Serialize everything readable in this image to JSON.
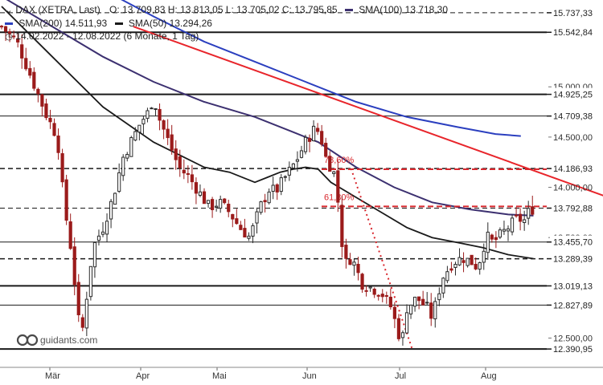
{
  "legend": {
    "instrument": "DAX (XETRA, Last)",
    "ohlc": "O: 13.709,83  H: 13.813,05  L: 13.705,02  C: 13.795,85",
    "sma100": "SMA(100)  13.718,30",
    "sma200": "SMA(200)  14.511,93",
    "sma50": "SMA(50)  13.294,26",
    "range": "14.02.2022 - 12.08.2022  (6 Monate, 1 Tag)"
  },
  "brand": "guidants.com",
  "colors": {
    "bull": "#2b2b2b",
    "bear": "#9b1b1b",
    "sma50": "#1a1a1a",
    "sma100": "#3c3070",
    "sma200": "#2b3fbf",
    "trend": "#e8252b",
    "fib": "#d8262c",
    "level": "#1a1a1a"
  },
  "chart_data": {
    "type": "candlestick",
    "title": "DAX (XETRA, Last)",
    "ylim": [
      12300,
      15800
    ],
    "x_months": [
      "Mär",
      "Apr",
      "Mai",
      "Jun",
      "Jul",
      "Aug"
    ],
    "y_ticks": [
      "15.000,00",
      "14.500,00",
      "14.000,00",
      "13.500,00",
      "12.500,00"
    ],
    "levels": [
      {
        "value": 15737.33,
        "label": "15.737,33",
        "style": "dashed",
        "width": 1
      },
      {
        "value": 15542.84,
        "label": "15.542,84",
        "style": "solid",
        "width": 2
      },
      {
        "value": 14925.25,
        "label": "14.925,25",
        "style": "solid",
        "width": 2
      },
      {
        "value": 14709.38,
        "label": "14.709,38",
        "style": "solid",
        "width": 1
      },
      {
        "value": 14186.93,
        "label": "14.186,93",
        "style": "dashed",
        "width": 1.5
      },
      {
        "value": 13792.88,
        "label": "13.792,88",
        "style": "dashed",
        "width": 1
      },
      {
        "value": 13455.7,
        "label": "13.455,70",
        "style": "solid",
        "width": 1
      },
      {
        "value": 13289.39,
        "label": "13.289,39",
        "style": "dashed",
        "width": 1.5
      },
      {
        "value": 13019.13,
        "label": "13.019,13",
        "style": "solid",
        "width": 2
      },
      {
        "value": 12827.89,
        "label": "12.827,89",
        "style": "solid",
        "width": 1
      },
      {
        "value": 12390.95,
        "label": "12.390,95",
        "style": "solid",
        "width": 2
      }
    ],
    "fib_levels": [
      {
        "label": "78,60%",
        "value": 14180
      },
      {
        "label": "61,80%",
        "value": 13810
      }
    ],
    "price_path": [
      [
        0,
        15600
      ],
      [
        6,
        15450
      ],
      [
        10,
        15200
      ],
      [
        14,
        14950
      ],
      [
        18,
        14700
      ],
      [
        22,
        14500
      ],
      [
        24,
        14000
      ],
      [
        26,
        13600
      ],
      [
        28,
        13300
      ],
      [
        30,
        12700
      ],
      [
        32,
        12600
      ],
      [
        34,
        13000
      ],
      [
        36,
        13400
      ],
      [
        40,
        13600
      ],
      [
        44,
        13900
      ],
      [
        48,
        14300
      ],
      [
        52,
        14500
      ],
      [
        55,
        14650
      ],
      [
        58,
        14750
      ],
      [
        60,
        14900
      ],
      [
        62,
        14700
      ],
      [
        66,
        14450
      ],
      [
        70,
        14200
      ],
      [
        74,
        14100
      ],
      [
        78,
        13950
      ],
      [
        82,
        13800
      ],
      [
        86,
        13850
      ],
      [
        90,
        13750
      ],
      [
        94,
        13600
      ],
      [
        98,
        13500
      ],
      [
        102,
        13800
      ],
      [
        106,
        14000
      ],
      [
        108,
        13950
      ],
      [
        112,
        14100
      ],
      [
        116,
        14250
      ],
      [
        120,
        14450
      ],
      [
        124,
        14600
      ],
      [
        126,
        14500
      ],
      [
        128,
        14300
      ],
      [
        130,
        14200
      ],
      [
        132,
        14100
      ],
      [
        134,
        13500
      ],
      [
        136,
        13250
      ],
      [
        138,
        13300
      ],
      [
        140,
        13200
      ],
      [
        142,
        13050
      ],
      [
        146,
        13000
      ],
      [
        150,
        12950
      ],
      [
        154,
        12800
      ],
      [
        156,
        12600
      ],
      [
        158,
        12450
      ],
      [
        160,
        12800
      ],
      [
        164,
        12900
      ],
      [
        168,
        12800
      ],
      [
        170,
        12700
      ],
      [
        172,
        12900
      ],
      [
        174,
        13100
      ],
      [
        178,
        13250
      ],
      [
        182,
        13300
      ],
      [
        186,
        13250
      ],
      [
        188,
        13200
      ],
      [
        190,
        13400
      ],
      [
        192,
        13500
      ],
      [
        194,
        13450
      ],
      [
        196,
        13500
      ],
      [
        200,
        13600
      ],
      [
        204,
        13700
      ],
      [
        206,
        13650
      ],
      [
        208,
        13750
      ],
      [
        210,
        13796
      ]
    ],
    "sma50": [
      [
        0,
        15800
      ],
      [
        20,
        15300
      ],
      [
        40,
        14800
      ],
      [
        60,
        14450
      ],
      [
        80,
        14200
      ],
      [
        90,
        14150
      ],
      [
        100,
        14050
      ],
      [
        105,
        14100
      ],
      [
        110,
        14150
      ],
      [
        115,
        14180
      ],
      [
        120,
        14200
      ],
      [
        125,
        14180
      ],
      [
        130,
        14050
      ],
      [
        140,
        13900
      ],
      [
        150,
        13750
      ],
      [
        160,
        13600
      ],
      [
        170,
        13500
      ],
      [
        180,
        13450
      ],
      [
        190,
        13400
      ],
      [
        200,
        13330
      ],
      [
        210,
        13290
      ]
    ],
    "sma100": [
      [
        0,
        15900
      ],
      [
        20,
        15600
      ],
      [
        40,
        15300
      ],
      [
        60,
        15050
      ],
      [
        80,
        14850
      ],
      [
        100,
        14700
      ],
      [
        115,
        14550
      ],
      [
        125,
        14450
      ],
      [
        140,
        14200
      ],
      [
        155,
        14000
      ],
      [
        170,
        13850
      ],
      [
        185,
        13780
      ],
      [
        200,
        13730
      ],
      [
        210,
        13718
      ]
    ],
    "sma200": [
      [
        45,
        15900
      ],
      [
        60,
        15700
      ],
      [
        80,
        15450
      ],
      [
        100,
        15250
      ],
      [
        120,
        15050
      ],
      [
        140,
        14850
      ],
      [
        160,
        14700
      ],
      [
        180,
        14600
      ],
      [
        195,
        14530
      ],
      [
        205,
        14510
      ]
    ],
    "trendline": [
      [
        52,
        15600
      ],
      [
        245,
        13850
      ]
    ],
    "fib_projection": [
      [
        138,
        14186
      ],
      [
        162,
        12400
      ]
    ]
  }
}
